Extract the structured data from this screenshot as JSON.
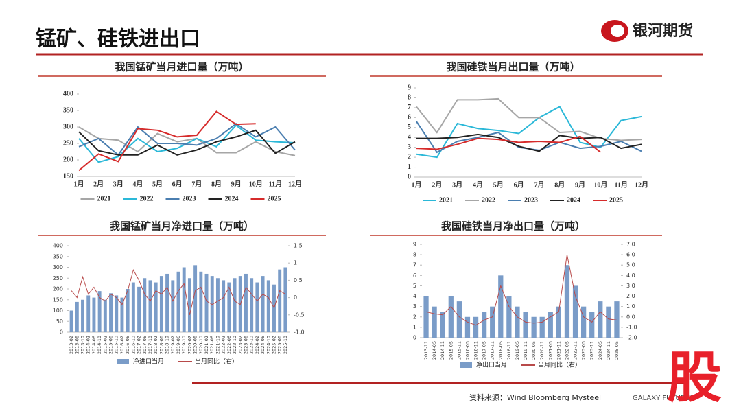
{
  "header": {
    "title": "锰矿、硅铁进出口",
    "logo": "银河期货"
  },
  "footer": {
    "source": "资料来源：Wind Bloomberg Mysteel",
    "brand": "GALAXY FUTURES",
    "watermark": "股"
  },
  "chart_data": [
    {
      "type": "line",
      "title": "我国锰矿当月进口量（万吨）",
      "categories": [
        "1月",
        "2月",
        "3月",
        "4月",
        "5月",
        "6月",
        "7月",
        "8月",
        "9月",
        "10月",
        "11月",
        "12月"
      ],
      "ylim": [
        150,
        400
      ],
      "yticks": [
        150,
        200,
        250,
        300,
        350,
        400
      ],
      "series": [
        {
          "name": "2021",
          "color": "#a6a6a6",
          "values": [
            300,
            265,
            260,
            225,
            280,
            255,
            265,
            222,
            222,
            255,
            225,
            213
          ]
        },
        {
          "name": "2022",
          "color": "#2bb8d8",
          "values": [
            265,
            193,
            210,
            265,
            225,
            235,
            265,
            240,
            305,
            260,
            255,
            252
          ]
        },
        {
          "name": "2023",
          "color": "#4a7eb0",
          "values": [
            240,
            265,
            215,
            300,
            250,
            250,
            245,
            265,
            310,
            270,
            300,
            230
          ]
        },
        {
          "name": "2024",
          "color": "#222222",
          "values": [
            285,
            228,
            215,
            215,
            245,
            215,
            230,
            255,
            270,
            290,
            220,
            255
          ]
        },
        {
          "name": "2025",
          "color": "#d62b2b",
          "values": [
            168,
            218,
            195,
            295,
            290,
            270,
            275,
            347,
            308,
            310,
            null,
            null
          ]
        }
      ]
    },
    {
      "type": "line",
      "title": "我国硅铁当月出口量（万吨）",
      "categories": [
        "1月",
        "2月",
        "3月",
        "4月",
        "5月",
        "6月",
        "7月",
        "8月",
        "9月",
        "10月",
        "11月",
        "12月"
      ],
      "ylim": [
        0,
        9
      ],
      "yticks": [
        0,
        1,
        2,
        3,
        4,
        5,
        6,
        7,
        8,
        9
      ],
      "series": [
        {
          "name": "2021",
          "color": "#2bb8d8",
          "values": [
            2.3,
            2.0,
            5.4,
            4.9,
            4.7,
            4.4,
            6.0,
            7.1,
            3.5,
            3.0,
            5.7,
            6.1
          ]
        },
        {
          "name": "2022",
          "color": "#a6a6a6",
          "values": [
            7.1,
            4.5,
            7.8,
            7.8,
            7.9,
            6.0,
            6.0,
            4.5,
            4.6,
            3.9,
            3.7,
            3.8
          ]
        },
        {
          "name": "2023",
          "color": "#4a7eb0",
          "values": [
            5.6,
            2.5,
            3.6,
            4.0,
            4.5,
            3.0,
            2.7,
            3.5,
            2.9,
            3.1,
            3.6,
            2.6
          ]
        },
        {
          "name": "2024",
          "color": "#222222",
          "values": [
            3.9,
            3.9,
            4.0,
            4.3,
            4.0,
            3.1,
            2.6,
            4.2,
            3.9,
            4.0,
            2.9,
            3.3
          ]
        },
        {
          "name": "2025",
          "color": "#d62b2b",
          "values": [
            2.9,
            2.8,
            3.3,
            3.9,
            3.8,
            3.5,
            3.6,
            3.5,
            4.1,
            2.5,
            null,
            null
          ]
        }
      ]
    },
    {
      "type": "combo",
      "title": "我国锰矿当月净进口量（万吨）",
      "categories": [
        "2013-02",
        "2013-06",
        "2013-10",
        "2014-02",
        "2014-06",
        "2014-10",
        "2015-02",
        "2015-06",
        "2015-10",
        "2016-02",
        "2016-06",
        "2016-10",
        "2017-02",
        "2017-06",
        "2017-10",
        "2018-02",
        "2018-06",
        "2018-10",
        "2019-02",
        "2019-06",
        "2019-10",
        "2020-02",
        "2020-06",
        "2020-10",
        "2021-02",
        "2021-06",
        "2021-10",
        "2022-02",
        "2022-06",
        "2022-10",
        "2023-02",
        "2023-06",
        "2023-10",
        "2024-02",
        "2024-06",
        "2024-10",
        "2025-02",
        "2025-06",
        "2025-10"
      ],
      "ylim": [
        0,
        400
      ],
      "yticks": [
        0,
        50,
        100,
        150,
        200,
        250,
        300,
        350,
        400
      ],
      "y2lim": [
        -1,
        1.5
      ],
      "y2ticks": [
        {
          "value": -1,
          "label": "-1.0"
        },
        -0.5,
        0,
        0.5,
        1,
        1.5
      ],
      "series": [
        {
          "name": "净进口当月",
          "type": "bar",
          "color": "#7a9cc8",
          "values": [
            100,
            140,
            150,
            170,
            160,
            190,
            150,
            180,
            170,
            160,
            200,
            230,
            210,
            250,
            240,
            230,
            260,
            270,
            240,
            280,
            300,
            250,
            310,
            280,
            270,
            260,
            250,
            240,
            230,
            250,
            260,
            270,
            250,
            230,
            260,
            240,
            220,
            290,
            300
          ]
        },
        {
          "name": "当月同比（右）",
          "type": "line",
          "axis": "y2",
          "color": "#b84a4a",
          "values": [
            0.2,
            0.0,
            0.6,
            0.1,
            0.3,
            0.0,
            -0.1,
            0.1,
            0.0,
            -0.2,
            0.2,
            0.8,
            0.5,
            0.1,
            -0.1,
            0.2,
            0.1,
            0.3,
            -0.1,
            0.2,
            0.4,
            -0.5,
            0.2,
            0.3,
            -0.1,
            -0.2,
            -0.1,
            0.0,
            0.3,
            -0.1,
            -0.2,
            0.3,
            0.1,
            -0.1,
            0.1,
            0.0,
            -0.3,
            0.2,
            0.1
          ]
        }
      ]
    },
    {
      "type": "combo",
      "title": "我国硅铁当月净出口量（万吨）",
      "categories": [
        "2013-11",
        "2014-05",
        "2014-11",
        "2015-05",
        "2015-11",
        "2016-05",
        "2016-11",
        "2017-05",
        "2017-11",
        "2018-05",
        "2018-11",
        "2019-05",
        "2019-11",
        "2020-05",
        "2020-11",
        "2021-05",
        "2021-11",
        "2022-05",
        "2022-11",
        "2023-05",
        "2023-11",
        "2024-05",
        "2024-11",
        "2025-05"
      ],
      "ylim": [
        0,
        9
      ],
      "yticks": [
        0,
        1,
        2,
        3,
        4,
        5,
        6,
        7,
        8,
        9
      ],
      "y2lim": [
        -2,
        7
      ],
      "y2ticks": [
        {
          "value": -2,
          "label": "-2.0"
        },
        {
          "value": -1,
          "label": "-1.0"
        },
        {
          "value": 0,
          "label": "0.0"
        },
        {
          "value": 1,
          "label": "1.0"
        },
        {
          "value": 2,
          "label": "2.0"
        },
        {
          "value": 3,
          "label": "3.0"
        },
        {
          "value": 4,
          "label": "4.0"
        },
        {
          "value": 5,
          "label": "5.0"
        },
        {
          "value": 6,
          "label": "6.0"
        },
        {
          "value": 7,
          "label": "7.0"
        }
      ],
      "series": [
        {
          "name": "净出口当月",
          "type": "bar",
          "color": "#7a9cc8",
          "values": [
            4,
            3,
            2.5,
            4,
            3.5,
            2,
            2,
            2.5,
            3,
            6,
            4,
            3,
            2.5,
            2,
            2,
            2.5,
            3,
            7,
            5,
            3,
            2.5,
            3.5,
            3,
            3.5
          ]
        },
        {
          "name": "当月同比（右）",
          "type": "line",
          "axis": "y2",
          "color": "#b84a4a",
          "values": [
            0.5,
            0.3,
            0.2,
            1.0,
            0.0,
            -0.5,
            -0.8,
            -0.3,
            0.0,
            3.0,
            1.0,
            0.0,
            -0.5,
            -0.6,
            -0.5,
            0.0,
            0.5,
            6.0,
            2.0,
            0.0,
            -0.5,
            0.5,
            -0.2,
            -0.3
          ]
        }
      ]
    }
  ]
}
